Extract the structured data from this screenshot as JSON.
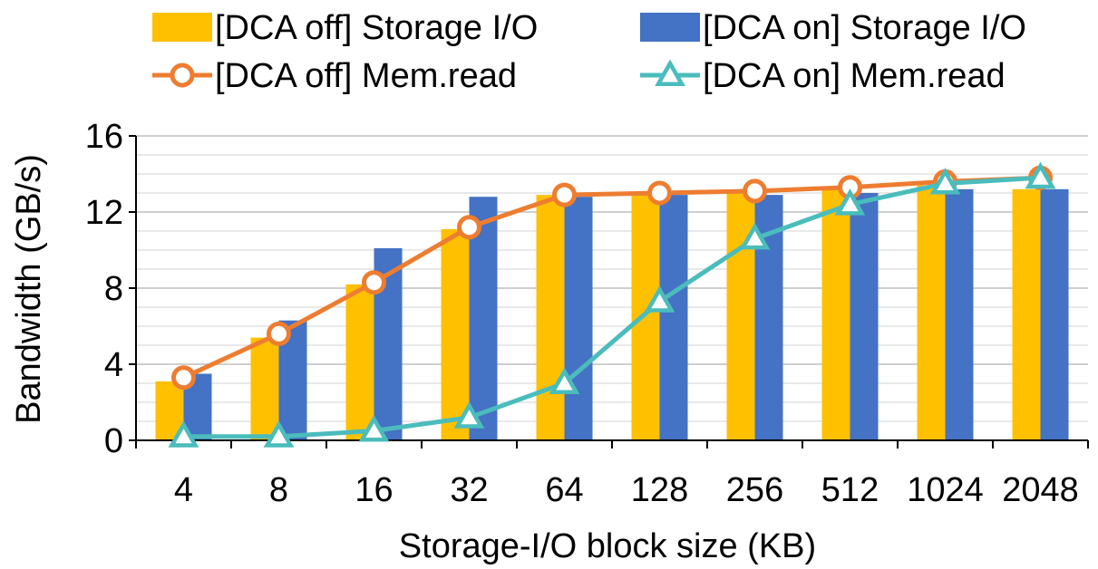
{
  "chart_data": {
    "type": "bar",
    "title": "",
    "xlabel": "Storage-I/O block size (KB)",
    "ylabel": "Bandwidth (GB/s)",
    "categories": [
      "4",
      "8",
      "16",
      "32",
      "64",
      "128",
      "256",
      "512",
      "1024",
      "2048"
    ],
    "ylim": [
      0,
      16
    ],
    "yticks": [
      "0",
      "4",
      "8",
      "12",
      "16"
    ],
    "grid": true,
    "legend_position": "top",
    "series": [
      {
        "name": "[DCA off] Storage I/O",
        "kind": "bar",
        "color": "#FFC000",
        "values": [
          3.1,
          5.4,
          8.2,
          11.1,
          12.9,
          12.9,
          13.0,
          13.2,
          13.4,
          13.2
        ]
      },
      {
        "name": "[DCA on] Storage I/O",
        "kind": "bar",
        "color": "#4472C4",
        "values": [
          3.5,
          6.3,
          10.1,
          12.8,
          12.8,
          12.9,
          12.9,
          13.0,
          13.2,
          13.2
        ]
      },
      {
        "name": "[DCA off] Mem.read",
        "kind": "line",
        "marker": "circle",
        "color": "#ED7D31",
        "values": [
          3.3,
          5.6,
          8.3,
          11.2,
          12.9,
          13.0,
          13.1,
          13.3,
          13.6,
          13.8
        ]
      },
      {
        "name": "[DCA on] Mem.read",
        "kind": "line",
        "marker": "triangle",
        "color": "#4BBCBC",
        "values": [
          0.2,
          0.2,
          0.5,
          1.2,
          3.0,
          7.3,
          10.6,
          12.4,
          13.5,
          13.8
        ]
      }
    ]
  }
}
